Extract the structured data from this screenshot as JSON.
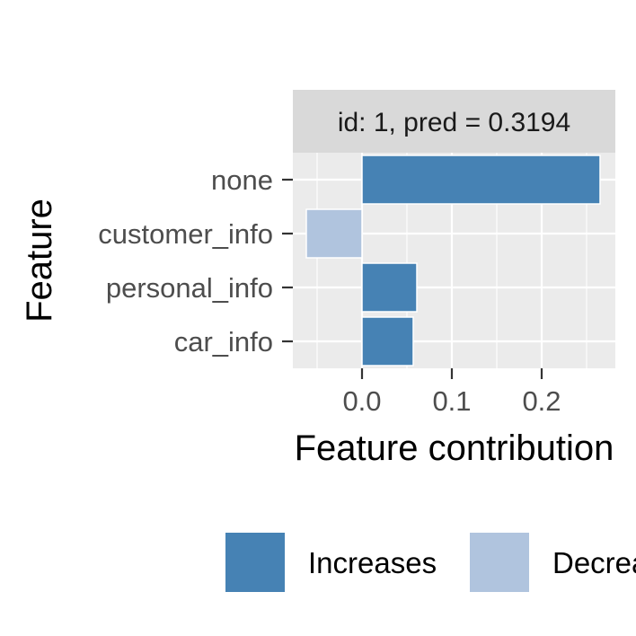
{
  "chart_data": {
    "type": "bar",
    "orientation": "horizontal",
    "facet_label": "id: 1, pred = 0.3194",
    "xlabel": "Feature contribution",
    "ylabel": "Feature",
    "categories": [
      "none",
      "customer_info",
      "personal_info",
      "car_info"
    ],
    "values": [
      0.265,
      -0.062,
      0.061,
      0.057
    ],
    "directions": [
      "Increases",
      "Decreases",
      "Increases",
      "Increases"
    ],
    "xlim": [
      -0.077,
      0.282
    ],
    "xticks": [
      0.0,
      0.1,
      0.2
    ],
    "xtick_labels": [
      "0.0",
      "0.1",
      "0.2"
    ],
    "grid": true,
    "panel_background": "#ebebeb",
    "strip_background": "#d9d9d9",
    "colors": {
      "Increases": "#4682b4",
      "Decreases": "#b0c4de"
    },
    "legend": {
      "position": "bottom",
      "entries": [
        "Increases",
        "Decreases"
      ]
    }
  }
}
